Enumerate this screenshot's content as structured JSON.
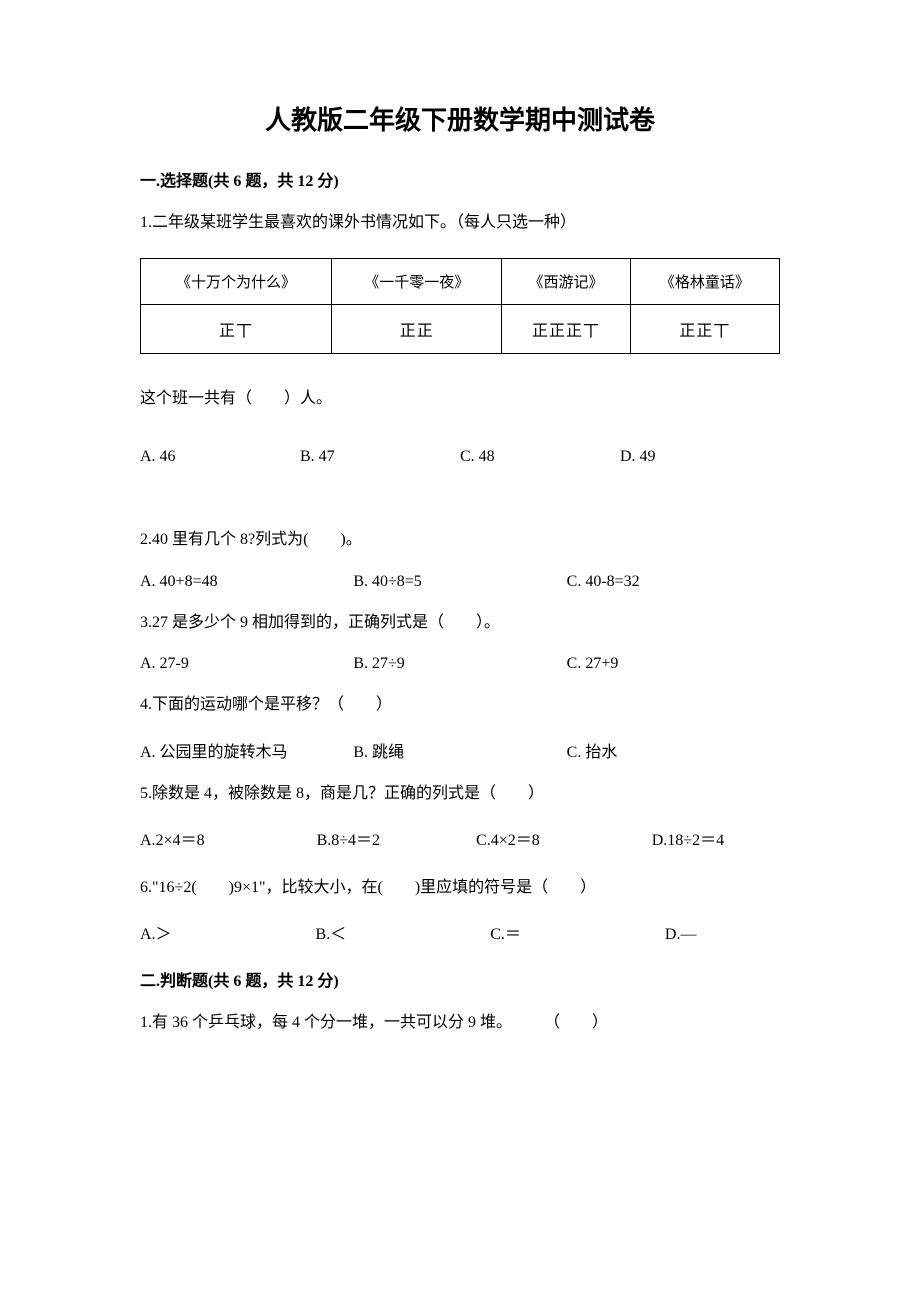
{
  "title": "人教版二年级下册数学期中测试卷",
  "section1": {
    "header": "一.选择题(共 6 题，共 12 分)",
    "q1": {
      "text": "1.二年级某班学生最喜欢的课外书情况如下。（每人只选一种）",
      "table": {
        "headers": [
          "《十万个为什么》",
          "《一千零一夜》",
          "《西游记》",
          "《格林童话》"
        ],
        "tallies": [
          "正丅",
          "正正",
          "正正正丅",
          "正正丅"
        ]
      },
      "sub": "这个班一共有（　　）人。",
      "options": {
        "a": "A. 46",
        "b": "B. 47",
        "c": "C. 48",
        "d": "D. 49"
      }
    },
    "q2": {
      "text": "2.40 里有几个 8?列式为(　　)。",
      "options": {
        "a": "A. 40+8=48",
        "b": "B. 40÷8=5",
        "c": "C. 40-8=32"
      }
    },
    "q3": {
      "text": "3.27 是多少个 9 相加得到的，正确列式是（　　）。",
      "options": {
        "a": "A. 27-9",
        "b": "B. 27÷9",
        "c": "C. 27+9"
      }
    },
    "q4": {
      "text": "4.下面的运动哪个是平移？（　　）",
      "options": {
        "a": "A. 公园里的旋转木马",
        "b": "B. 跳绳",
        "c": "C. 抬水"
      }
    },
    "q5": {
      "text": "5.除数是 4，被除数是 8，商是几？正确的列式是（　　）",
      "options_line": "A.2×4＝8　　　　　　　B.8÷4＝2　　　　　　C.4×2＝8　　　　　　　D.18÷2＝4"
    },
    "q6": {
      "text": "6.\"16÷2(　　)9×1\"，比较大小，在(　　)里应填的符号是（　　）",
      "options_line": "A.＞　　　　　　　　　B.＜　　　　　　　　　C.＝　　　　　　　　　D.—"
    }
  },
  "section2": {
    "header": "二.判断题(共 6 题，共 12 分)",
    "q1": {
      "text": "1.有 36 个乒乓球，每 4 个分一堆，一共可以分 9 堆。　　　（　　）"
    }
  }
}
